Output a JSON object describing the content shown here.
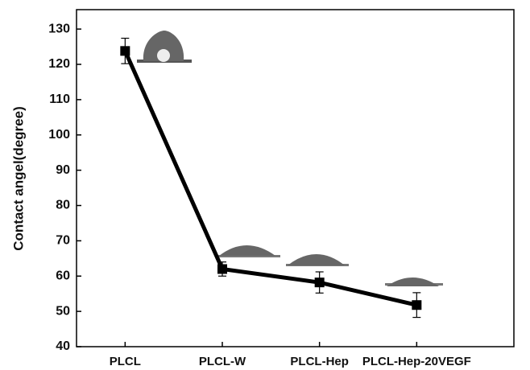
{
  "chart_data": {
    "type": "line",
    "y_label": "Contact angel(degree)",
    "categories": [
      "PLCL",
      "PLCL-W",
      "PLCL-Hep",
      "PLCL-Hep-20VEGF"
    ],
    "values": [
      123.8,
      62,
      58.2,
      51.8
    ],
    "errors": [
      3.6,
      2,
      3,
      3.5
    ],
    "color": "#000000",
    "ylim": [
      40,
      135.5
    ],
    "yticks": [
      40,
      50,
      60,
      70,
      80,
      90,
      100,
      110,
      120,
      130
    ]
  }
}
